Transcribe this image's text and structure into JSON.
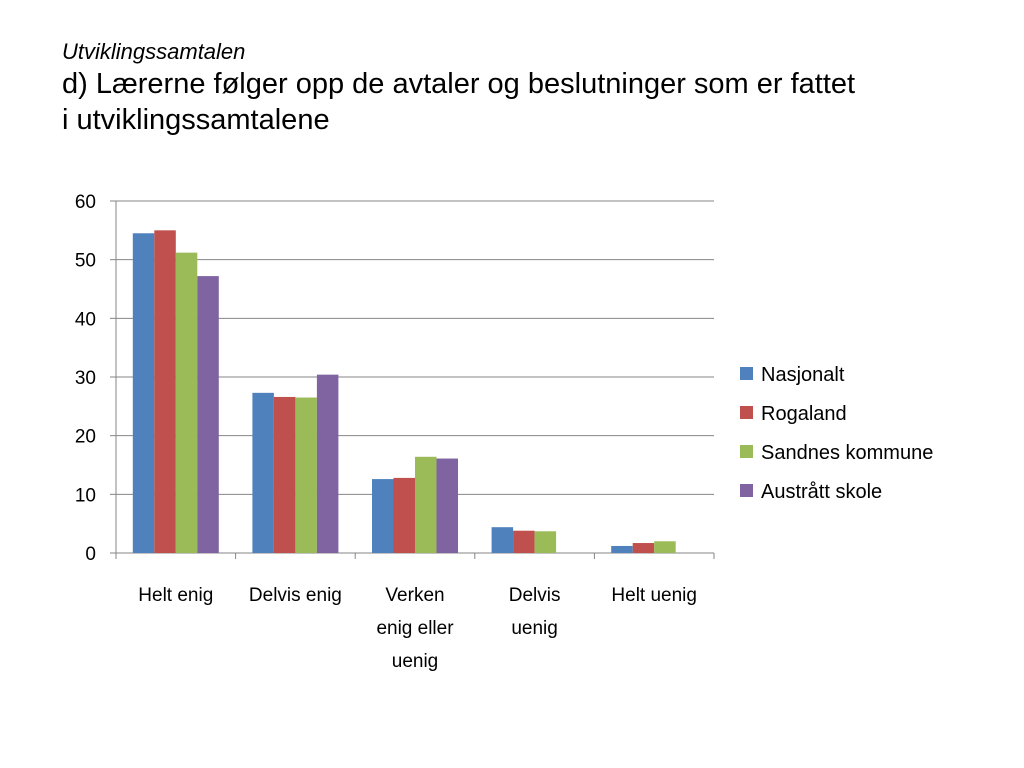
{
  "header": {
    "subtitle": "Utviklingssamtalen",
    "title_line1": "d) Lærerne følger opp de avtaler og beslutninger som er fattet",
    "title_line2": "i utviklingssamtalene"
  },
  "chart_data": {
    "type": "bar",
    "title": "",
    "xlabel": "",
    "ylabel": "",
    "ylim": [
      0,
      60
    ],
    "yticks": [
      0,
      10,
      20,
      30,
      40,
      50,
      60
    ],
    "grid": true,
    "legend_position": "right",
    "categories": [
      [
        "Helt enig"
      ],
      [
        "Delvis enig"
      ],
      [
        "Verken",
        "enig eller",
        "uenig"
      ],
      [
        "Delvis",
        "uenig"
      ],
      [
        "Helt uenig"
      ]
    ],
    "series": [
      {
        "name": "Nasjonalt",
        "color": "#4F81BD",
        "values": [
          54.5,
          27.3,
          12.6,
          4.4,
          1.2
        ]
      },
      {
        "name": "Rogaland",
        "color": "#C0504D",
        "values": [
          55.0,
          26.6,
          12.8,
          3.8,
          1.7
        ]
      },
      {
        "name": "Sandnes kommune",
        "color": "#9BBB59",
        "values": [
          51.2,
          26.5,
          16.4,
          3.7,
          2.0
        ]
      },
      {
        "name": "Austrått skole",
        "color": "#8064A2",
        "values": [
          47.2,
          30.4,
          16.1,
          0,
          0
        ]
      }
    ]
  }
}
